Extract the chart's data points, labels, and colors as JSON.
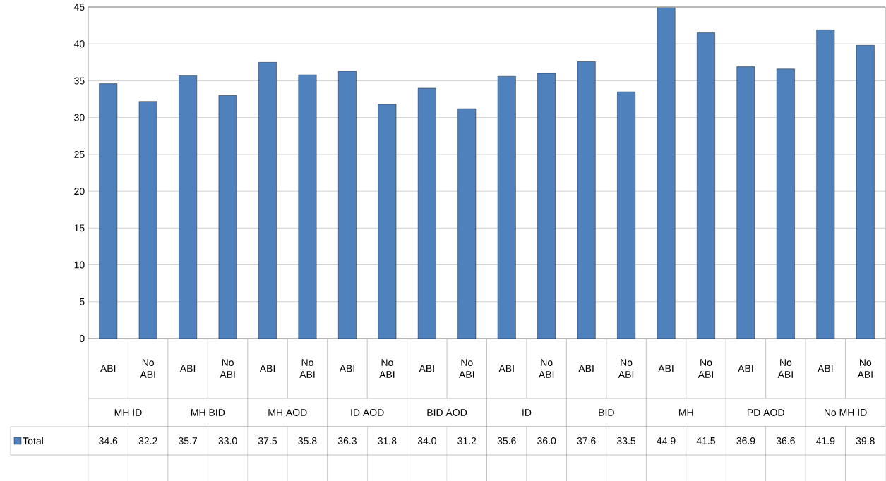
{
  "chart_data": {
    "type": "bar",
    "categories": [
      "ABI",
      "No ABI",
      "ABI",
      "No ABI",
      "ABI",
      "No ABI",
      "ABI",
      "No ABI",
      "ABI",
      "No ABI",
      "ABI",
      "No ABI",
      "ABI",
      "No ABI",
      "ABI",
      "No ABI",
      "ABI",
      "No ABI",
      "ABI",
      "No ABI"
    ],
    "annotations": [
      "MH ID",
      "MH BID",
      "MH AOD",
      "ID AOD",
      "BID AOD",
      "ID",
      "BID",
      "MH",
      "PD AOD",
      "No MH ID"
    ],
    "series": [
      {
        "name": "Total",
        "color": "#4f81bd",
        "values": [
          34.6,
          32.2,
          35.7,
          33.0,
          37.5,
          35.8,
          36.3,
          31.8,
          34.0,
          31.2,
          35.6,
          36.0,
          37.6,
          33.5,
          44.9,
          41.5,
          36.9,
          36.6,
          41.9,
          39.8
        ],
        "value_labels": [
          "34.6",
          "32.2",
          "35.7",
          "33.0",
          "37.5",
          "35.8",
          "36.3",
          "31.8",
          "34.0",
          "31.2",
          "35.6",
          "36.0",
          "37.6",
          "33.5",
          "44.9",
          "41.5",
          "36.9",
          "36.6",
          "41.9",
          "39.8"
        ]
      }
    ],
    "ylim": [
      0,
      45
    ],
    "yticks": [
      0,
      5,
      10,
      15,
      20,
      25,
      30,
      35,
      40,
      45
    ],
    "grid": "y",
    "legend": "bottom"
  }
}
